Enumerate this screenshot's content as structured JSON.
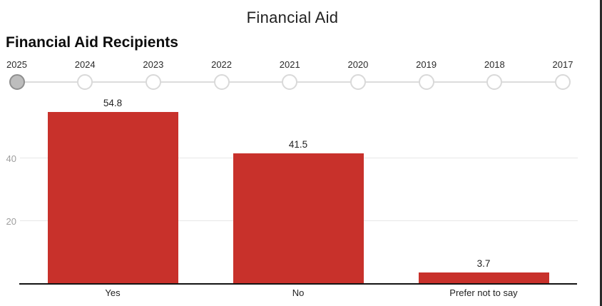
{
  "header": {
    "title": "Financial Aid"
  },
  "section": {
    "heading": "Financial Aid Recipients"
  },
  "timeline": {
    "years": [
      "2025",
      "2024",
      "2023",
      "2022",
      "2021",
      "2020",
      "2019",
      "2018",
      "2017"
    ],
    "selected": "2025"
  },
  "chart_data": {
    "type": "bar",
    "title": "Financial Aid Recipients",
    "categories": [
      "Yes",
      "No",
      "Prefer not to say"
    ],
    "values": [
      54.8,
      41.5,
      3.7
    ],
    "value_labels": [
      "54.8",
      "41.5",
      "3.7"
    ],
    "xlabel": "",
    "ylabel": "",
    "ylim": [
      0,
      60
    ],
    "yticks": [
      20,
      40
    ],
    "grid": true,
    "legend": "none",
    "bar_color": "#c8312b"
  },
  "colors": {
    "bar": "#c8312b",
    "selected_circle_fill": "#bdbdbd",
    "selected_circle_border": "#8f8f8f",
    "circle_border": "#d9d9d9",
    "track": "#dcdcdc",
    "gridline": "#e7e7e7",
    "axis": "#141414",
    "y_label": "#9e9e9e"
  }
}
